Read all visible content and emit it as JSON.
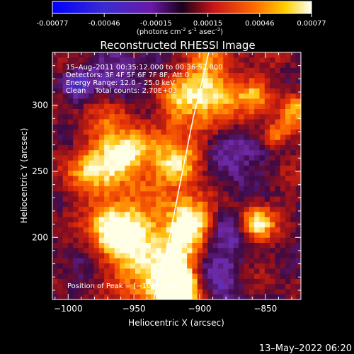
{
  "colorbar": {
    "ticks": [
      "-0.00077",
      "-0.00046",
      "-0.00015",
      "0.00015",
      "0.00046",
      "0.00077"
    ],
    "units": "(photons cm",
    "units_sup1": "-2",
    "units_mid": " s",
    "units_sup2": "-1",
    "units_mid2": " asec",
    "units_sup3": "-2",
    "units_end": ")"
  },
  "chart_data": {
    "type": "heatmap",
    "title": "Reconstructed RHESSI Image",
    "xlabel": "Heliocentric X (arcsec)",
    "ylabel": "Heliocentric Y (arcsec)",
    "xlim": [
      -1012,
      -823
    ],
    "ylim": [
      153,
      340
    ],
    "xticks": [
      -1000,
      -950,
      -900,
      -850
    ],
    "xtick_labels": [
      "−1000",
      "−950",
      "−900",
      "−850"
    ],
    "yticks": [
      200,
      250,
      300
    ],
    "ytick_labels": [
      "200",
      "250",
      "300"
    ],
    "color_range": [
      -0.00077,
      0.00077
    ],
    "colormap": "blue-purple-red-orange-yellow-white",
    "limb_curve": [
      {
        "x": -935,
        "y": 153
      },
      {
        "x": -925,
        "y": 190
      },
      {
        "x": -915,
        "y": 240
      },
      {
        "x": -905,
        "y": 290
      },
      {
        "x": -893,
        "y": 340
      }
    ],
    "peak_position": [
      -1015,
      314
    ],
    "annotations": [
      "15–Aug–2011 00:35:12.000 to 00:36:52.000",
      "Detectors: 3F 4F 5F 6F 7F 8F, Att 0",
      "Energy Range: 12.0 – 25.0 keV",
      "Clean    Total counts: 2.70E+03",
      "Position of Peak = [−1015,314]"
    ]
  },
  "footer": {
    "timestamp": "13–May–2022 06:20"
  }
}
